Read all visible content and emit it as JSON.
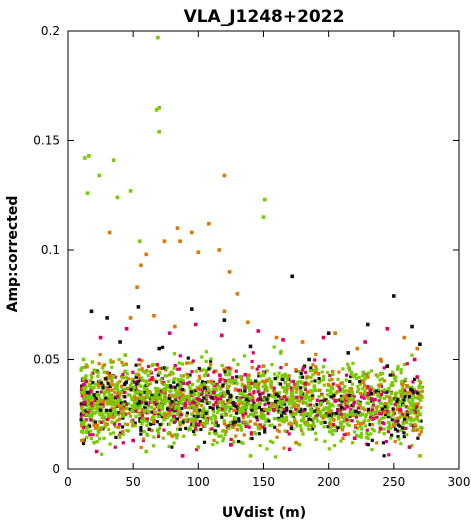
{
  "chart_data": {
    "type": "scatter",
    "title": "VLA_J1248+2022",
    "xlabel": "UVdist (m)",
    "ylabel": "Amp:corrected",
    "xlim": [
      0,
      300
    ],
    "ylim": [
      0,
      0.2
    ],
    "x_ticks": [
      "0",
      "50",
      "100",
      "150",
      "200",
      "250",
      "300"
    ],
    "y_ticks": [
      "0",
      "0.05",
      "0.1",
      "0.15",
      "0.2"
    ],
    "grid": false,
    "legend": "none",
    "series": [
      {
        "color": "#77cc00",
        "points": [
          [
            13,
            0.142
          ],
          [
            16,
            0.143
          ],
          [
            15,
            0.126
          ],
          [
            24,
            0.134
          ],
          [
            35,
            0.141
          ],
          [
            38,
            0.124
          ],
          [
            48,
            0.127
          ],
          [
            69,
            0.197
          ],
          [
            68,
            0.164
          ],
          [
            70,
            0.165
          ],
          [
            70,
            0.154
          ],
          [
            151,
            0.123
          ],
          [
            150,
            0.115
          ],
          [
            55,
            0.104
          ],
          [
            12,
            0.05
          ],
          [
            20,
            0.045
          ],
          [
            28,
            0.035
          ],
          [
            36,
            0.03
          ],
          [
            44,
            0.052
          ],
          [
            52,
            0.028
          ],
          [
            60,
            0.04
          ],
          [
            68,
            0.033
          ],
          [
            76,
            0.038
          ],
          [
            84,
            0.025
          ],
          [
            92,
            0.042
          ],
          [
            100,
            0.03
          ],
          [
            108,
            0.036
          ],
          [
            116,
            0.027
          ],
          [
            124,
            0.044
          ],
          [
            132,
            0.031
          ],
          [
            140,
            0.037
          ],
          [
            148,
            0.024
          ],
          [
            156,
            0.039
          ],
          [
            164,
            0.029
          ],
          [
            172,
            0.034
          ],
          [
            180,
            0.022
          ],
          [
            190,
            0.036
          ],
          [
            200,
            0.027
          ],
          [
            210,
            0.032
          ],
          [
            225,
            0.025
          ],
          [
            240,
            0.03
          ],
          [
            255,
            0.035
          ],
          [
            265,
            0.028
          ],
          [
            270,
            0.006
          ],
          [
            20,
            0.012
          ],
          [
            60,
            0.008
          ],
          [
            100,
            0.01
          ],
          [
            140,
            0.006
          ]
        ]
      },
      {
        "color": "#e07800",
        "points": [
          [
            32,
            0.108
          ],
          [
            53,
            0.083
          ],
          [
            56,
            0.093
          ],
          [
            60,
            0.098
          ],
          [
            74,
            0.104
          ],
          [
            84,
            0.11
          ],
          [
            86,
            0.104
          ],
          [
            95,
            0.108
          ],
          [
            100,
            0.099
          ],
          [
            108,
            0.112
          ],
          [
            116,
            0.1
          ],
          [
            120,
            0.134
          ],
          [
            124,
            0.09
          ],
          [
            130,
            0.08
          ],
          [
            48,
            0.069
          ],
          [
            66,
            0.07
          ],
          [
            82,
            0.065
          ],
          [
            120,
            0.072
          ],
          [
            138,
            0.067
          ],
          [
            160,
            0.06
          ],
          [
            180,
            0.058
          ],
          [
            205,
            0.062
          ],
          [
            222,
            0.055
          ],
          [
            240,
            0.05
          ],
          [
            258,
            0.06
          ],
          [
            268,
            0.055
          ],
          [
            30,
            0.044
          ],
          [
            70,
            0.046
          ],
          [
            110,
            0.04
          ],
          [
            150,
            0.047
          ],
          [
            190,
            0.044
          ],
          [
            230,
            0.042
          ],
          [
            260,
            0.038
          ],
          [
            20,
            0.02
          ],
          [
            80,
            0.015
          ],
          [
            130,
            0.018
          ],
          [
            175,
            0.012
          ],
          [
            215,
            0.016
          ],
          [
            250,
            0.02
          ]
        ]
      },
      {
        "color": "#111111",
        "points": [
          [
            18,
            0.072
          ],
          [
            30,
            0.069
          ],
          [
            54,
            0.074
          ],
          [
            172,
            0.088
          ],
          [
            250,
            0.079
          ],
          [
            230,
            0.066
          ],
          [
            264,
            0.065
          ],
          [
            270,
            0.057
          ],
          [
            200,
            0.062
          ],
          [
            120,
            0.068
          ],
          [
            95,
            0.073
          ],
          [
            40,
            0.058
          ],
          [
            70,
            0.055
          ],
          [
            140,
            0.056
          ],
          [
            185,
            0.05
          ],
          [
            215,
            0.053
          ],
          [
            245,
            0.047
          ],
          [
            15,
            0.035
          ],
          [
            60,
            0.03
          ],
          [
            105,
            0.037
          ],
          [
            160,
            0.034
          ],
          [
            210,
            0.028
          ],
          [
            262,
            0.033
          ]
        ]
      },
      {
        "color": "#e0006a",
        "points": [
          [
            25,
            0.06
          ],
          [
            45,
            0.064
          ],
          [
            78,
            0.062
          ],
          [
            98,
            0.066
          ],
          [
            118,
            0.061
          ],
          [
            146,
            0.063
          ],
          [
            165,
            0.059
          ],
          [
            196,
            0.06
          ],
          [
            228,
            0.058
          ],
          [
            245,
            0.064
          ],
          [
            266,
            0.05
          ],
          [
            14,
            0.04
          ],
          [
            38,
            0.033
          ],
          [
            64,
            0.041
          ],
          [
            90,
            0.029
          ],
          [
            112,
            0.035
          ],
          [
            136,
            0.043
          ],
          [
            158,
            0.027
          ],
          [
            182,
            0.039
          ],
          [
            205,
            0.031
          ],
          [
            232,
            0.036
          ],
          [
            255,
            0.027
          ],
          [
            268,
            0.042
          ],
          [
            22,
            0.008
          ],
          [
            50,
            0.013
          ],
          [
            88,
            0.006
          ],
          [
            125,
            0.011
          ],
          [
            170,
            0.009
          ],
          [
            220,
            0.014
          ],
          [
            262,
            0.01
          ]
        ]
      }
    ]
  }
}
